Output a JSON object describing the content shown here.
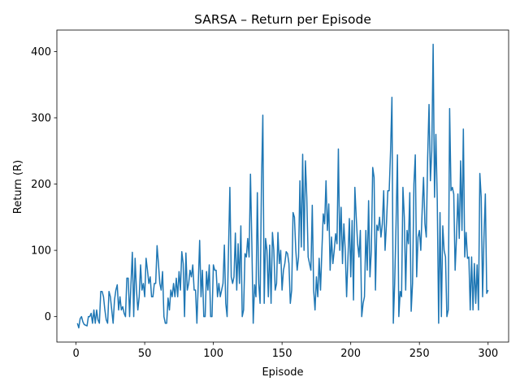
{
  "chart_data": {
    "type": "line",
    "title": "SARSA – Return per Episode",
    "x_label": "Episode",
    "y_label": "Return (R)",
    "color": "#1f77b4",
    "grid": false,
    "x": [
      1,
      2,
      3,
      4,
      5,
      6,
      7,
      8,
      9,
      10,
      11,
      12,
      13,
      14,
      15,
      16,
      17,
      18,
      19,
      20,
      21,
      22,
      23,
      24,
      25,
      26,
      27,
      28,
      29,
      30,
      31,
      32,
      33,
      34,
      35,
      36,
      37,
      38,
      39,
      40,
      41,
      42,
      43,
      44,
      45,
      46,
      47,
      48,
      49,
      50,
      51,
      52,
      53,
      54,
      55,
      56,
      57,
      58,
      59,
      60,
      61,
      62,
      63,
      64,
      65,
      66,
      67,
      68,
      69,
      70,
      71,
      72,
      73,
      74,
      75,
      76,
      77,
      78,
      79,
      80,
      81,
      82,
      83,
      84,
      85,
      86,
      87,
      88,
      89,
      90,
      91,
      92,
      93,
      94,
      95,
      96,
      97,
      98,
      99,
      100,
      101,
      102,
      103,
      104,
      105,
      106,
      107,
      108,
      109,
      110,
      111,
      112,
      113,
      114,
      115,
      116,
      117,
      118,
      119,
      120,
      121,
      122,
      123,
      124,
      125,
      126,
      127,
      128,
      129,
      130,
      131,
      132,
      133,
      134,
      135,
      136,
      137,
      138,
      139,
      140,
      141,
      142,
      143,
      144,
      145,
      146,
      147,
      148,
      149,
      150,
      151,
      152,
      153,
      154,
      155,
      156,
      157,
      158,
      159,
      160,
      161,
      162,
      163,
      164,
      165,
      166,
      167,
      168,
      169,
      170,
      171,
      172,
      173,
      174,
      175,
      176,
      177,
      178,
      179,
      180,
      181,
      182,
      183,
      184,
      185,
      186,
      187,
      188,
      189,
      190,
      191,
      192,
      193,
      194,
      195,
      196,
      197,
      198,
      199,
      200,
      201,
      202,
      203,
      204,
      205,
      206,
      207,
      208,
      209,
      210,
      211,
      212,
      213,
      214,
      215,
      216,
      217,
      218,
      219,
      220,
      221,
      222,
      223,
      224,
      225,
      226,
      227,
      228,
      229,
      230,
      231,
      232,
      233,
      234,
      235,
      236,
      237,
      238,
      239,
      240,
      241,
      242,
      243,
      244,
      245,
      246,
      247,
      248,
      249,
      250,
      251,
      252,
      253,
      254,
      255,
      256,
      257,
      258,
      259,
      260,
      261,
      262,
      263,
      264,
      265,
      266,
      267,
      268,
      269,
      270,
      271,
      272,
      273,
      274,
      275,
      276,
      277,
      278,
      279,
      280,
      281,
      282,
      283,
      284,
      285,
      286,
      287,
      288,
      289,
      290,
      291,
      292,
      293,
      294,
      295,
      296,
      297,
      298,
      299,
      300
    ],
    "values": [
      -10,
      -17,
      -3,
      0,
      -8,
      -12,
      -13,
      -14,
      0,
      0,
      5,
      -10,
      10,
      -10,
      10,
      -5,
      -10,
      38,
      38,
      30,
      10,
      -5,
      -10,
      38,
      30,
      10,
      -10,
      25,
      40,
      48,
      10,
      30,
      10,
      15,
      5,
      0,
      58,
      58,
      0,
      50,
      97,
      0,
      88,
      40,
      10,
      30,
      78,
      40,
      50,
      30,
      88,
      70,
      50,
      60,
      30,
      30,
      50,
      50,
      107,
      80,
      50,
      40,
      68,
      0,
      -10,
      -10,
      28,
      10,
      40,
      30,
      50,
      30,
      58,
      30,
      68,
      40,
      98,
      80,
      0,
      96,
      40,
      50,
      70,
      60,
      78,
      40,
      40,
      -10,
      50,
      115,
      30,
      70,
      0,
      0,
      68,
      40,
      78,
      0,
      0,
      78,
      70,
      70,
      30,
      50,
      30,
      40,
      50,
      108,
      20,
      0,
      100,
      195,
      60,
      50,
      60,
      126,
      40,
      110,
      50,
      137,
      0,
      10,
      95,
      90,
      118,
      90,
      215,
      110,
      -10,
      48,
      30,
      187,
      50,
      20,
      200,
      304,
      20,
      118,
      100,
      30,
      108,
      20,
      127,
      100,
      40,
      50,
      127,
      80,
      100,
      40,
      70,
      80,
      98,
      95,
      80,
      20,
      40,
      157,
      150,
      100,
      70,
      90,
      205,
      105,
      245,
      100,
      235,
      180,
      90,
      80,
      70,
      168,
      40,
      10,
      60,
      30,
      88,
      40,
      100,
      155,
      140,
      205,
      130,
      170,
      70,
      120,
      80,
      100,
      125,
      110,
      253,
      100,
      165,
      80,
      140,
      100,
      30,
      90,
      148,
      60,
      145,
      25,
      195,
      150,
      110,
      90,
      130,
      0,
      20,
      30,
      130,
      70,
      175,
      60,
      100,
      225,
      210,
      40,
      138,
      130,
      150,
      120,
      140,
      190,
      100,
      140,
      190,
      190,
      250,
      331,
      -10,
      50,
      140,
      244,
      0,
      38,
      30,
      195,
      150,
      40,
      130,
      110,
      187,
      8,
      50,
      200,
      244,
      60,
      120,
      130,
      100,
      160,
      210,
      140,
      120,
      240,
      320,
      205,
      250,
      411,
      180,
      275,
      175,
      -10,
      157,
      0,
      137,
      100,
      90,
      0,
      10,
      314,
      190,
      195,
      185,
      70,
      120,
      185,
      118,
      235,
      130,
      283,
      90,
      127,
      88,
      90,
      10,
      90,
      10,
      80,
      20,
      78,
      10,
      216,
      180,
      30,
      120,
      185,
      35,
      40
    ],
    "xlim": [
      -13.95,
      314.95
    ],
    "xticks": [
      0,
      50,
      100,
      150,
      200,
      250,
      300
    ],
    "ylim": [
      -38.4,
      432.4
    ],
    "yticks": [
      0,
      100,
      200,
      300,
      400
    ]
  }
}
